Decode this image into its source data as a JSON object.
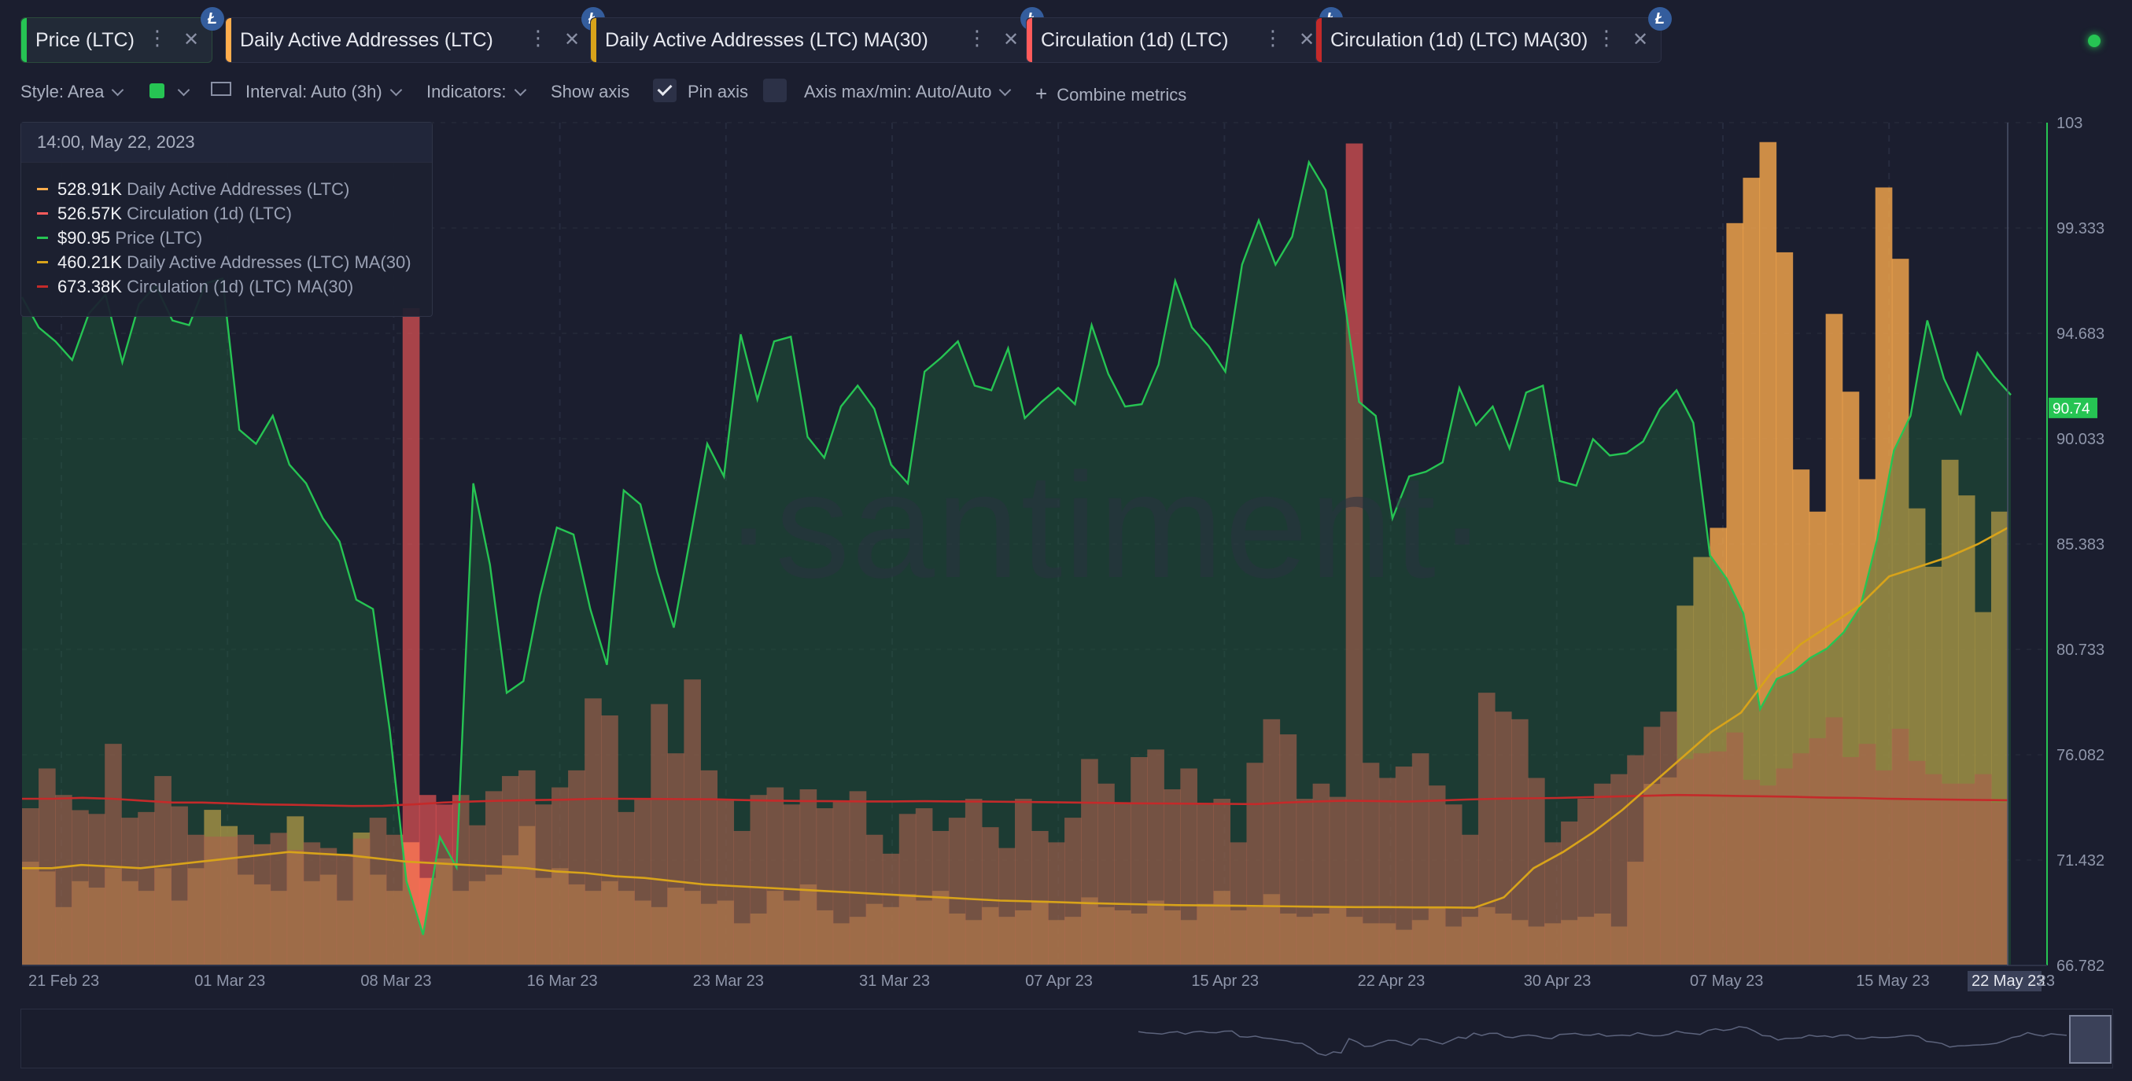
{
  "tabs": [
    {
      "label": "Price (LTC)",
      "color": "#26c453",
      "active": true
    },
    {
      "label": "Daily Active Addresses (LTC)",
      "color": "#ffad4d"
    },
    {
      "label": "Daily Active Addresses (LTC) MA(30)",
      "color": "#d8a31a"
    },
    {
      "label": "Circulation (1d) (LTC)",
      "color": "#ff5b5b"
    },
    {
      "label": "Circulation (1d) (LTC) MA(30)",
      "color": "#c42a2a"
    }
  ],
  "coin_symbol": "Ł",
  "settings": {
    "style": "Style: Area",
    "color_swatch": "#26c453",
    "interval": "Interval: Auto (3h)",
    "indicators": "Indicators:",
    "show_axis": "Show axis",
    "pin_axis": "Pin axis",
    "axis_maxmin": "Axis max/min: Auto/Auto",
    "combine": "Combine metrics"
  },
  "tooltip": {
    "date": "14:00, May 22, 2023",
    "rows": [
      {
        "value": "528.91K",
        "name": "Daily Active Addresses (LTC)",
        "color": "#ffad4d"
      },
      {
        "value": "526.57K",
        "name": "Circulation (1d) (LTC)",
        "color": "#ff5b5b"
      },
      {
        "value": "$90.95",
        "name": "Price (LTC)",
        "color": "#26c453"
      },
      {
        "value": "460.21K",
        "name": "Daily Active Addresses (LTC) MA(30)",
        "color": "#d8a31a"
      },
      {
        "value": "673.38K",
        "name": "Circulation (1d) (LTC) MA(30)",
        "color": "#c42a2a"
      }
    ]
  },
  "watermark": "·santiment·",
  "chart_data": {
    "type": "bar",
    "x_labels": [
      "21 Feb 23",
      "01 Mar 23",
      "08 Mar 23",
      "16 Mar 23",
      "23 Mar 23",
      "31 Mar 23",
      "07 Apr 23",
      "15 Apr 23",
      "22 Apr 23",
      "30 Apr 23",
      "07 May 23",
      "15 May 23",
      "22 May 23"
    ],
    "x_end_fragment": "23",
    "y_ticks": [
      "103",
      "99.333",
      "94.683",
      "90.033",
      "85.383",
      "80.733",
      "76.082",
      "71.432",
      "66.782"
    ],
    "price_axis_ylim": [
      66.782,
      103
    ],
    "last_price_label": "90.74",
    "hover_label": "22 May 23",
    "series": [
      {
        "name": "Price (LTC)",
        "type": "area",
        "color": "#26c453",
        "values": [
          95.5,
          94.2,
          93.6,
          92.8,
          94.8,
          95.6,
          92.7,
          95.2,
          96.0,
          94.5,
          94.3,
          96.1,
          96.3,
          89.8,
          89.2,
          90.4,
          88.3,
          87.5,
          86.0,
          85.0,
          82.5,
          82.1,
          76.9,
          70.4,
          68.1,
          72.3,
          71.0,
          87.5,
          84.0,
          78.5,
          79.0,
          82.7,
          85.6,
          85.3,
          82.1,
          79.7,
          87.2,
          86.6,
          83.7,
          81.3,
          85.2,
          89.2,
          87.8,
          93.9,
          91.1,
          93.6,
          93.8,
          89.5,
          88.6,
          90.8,
          91.7,
          90.7,
          88.3,
          87.5,
          92.3,
          92.9,
          93.6,
          91.7,
          91.5,
          93.3,
          90.3,
          91.0,
          91.6,
          90.9,
          94.3,
          92.2,
          90.8,
          90.9,
          92.6,
          96.2,
          94.2,
          93.4,
          92.3,
          96.9,
          98.8,
          96.9,
          98.1,
          101.3,
          100.1,
          96.0,
          91.0,
          90.4,
          86.0,
          87.8,
          88.0,
          88.4,
          91.6,
          90.0,
          90.8,
          89.0,
          91.4,
          91.7,
          87.6,
          87.4,
          89.4,
          88.7,
          88.8,
          89.3,
          90.7,
          91.5,
          90.1,
          84.4,
          83.4,
          81.9,
          77.8,
          79.1,
          79.4,
          80.0,
          80.4,
          81.1,
          82.2,
          85.1,
          88.9,
          90.4,
          94.5,
          92.0,
          90.5,
          93.1,
          92.1,
          91.3
        ],
        "note": "price path from 21 Feb 23 to 22 May 23 (approx.)"
      },
      {
        "name": "Daily Active Addresses (LTC)",
        "type": "bar",
        "color": "#ffad4d",
        "values": [
          320,
          290,
          180,
          260,
          240,
          300,
          260,
          230,
          300,
          200,
          300,
          480,
          430,
          280,
          250,
          230,
          460,
          260,
          280,
          200,
          410,
          280,
          230,
          380,
          270,
          330,
          230,
          260,
          280,
          340,
          430,
          270,
          300,
          250,
          230,
          260,
          230,
          200,
          180,
          240,
          230,
          190,
          200,
          130,
          160,
          230,
          200,
          250,
          170,
          130,
          150,
          190,
          180,
          220,
          200,
          230,
          160,
          140,
          180,
          150,
          170,
          200,
          140,
          150,
          210,
          180,
          170,
          160,
          200,
          170,
          140,
          190,
          230,
          170,
          180,
          220,
          160,
          150,
          160,
          180,
          150,
          130,
          130,
          110,
          140,
          180,
          120,
          150,
          180,
          160,
          140,
          120,
          130,
          140,
          150,
          160,
          120,
          320,
          560,
          580,
          1110,
          1260,
          1350,
          2290,
          2430,
          2540,
          2200,
          1530,
          1400,
          2010,
          1770,
          1500,
          2400,
          2180,
          1410,
          1230,
          1560,
          1450,
          1090,
          1400
        ],
        "unit": "K"
      },
      {
        "name": "Circulation (1d) (LTC)",
        "type": "bar",
        "color": "#ff5b5b",
        "values": [
          830,
          1040,
          900,
          820,
          800,
          1170,
          780,
          810,
          1000,
          840,
          690,
          680,
          680,
          690,
          640,
          700,
          610,
          650,
          620,
          590,
          670,
          780,
          690,
          3470,
          900,
          850,
          900,
          740,
          920,
          1000,
          1030,
          850,
          940,
          1030,
          1410,
          1320,
          810,
          880,
          1380,
          1120,
          1510,
          1030,
          880,
          710,
          900,
          940,
          850,
          930,
          830,
          870,
          920,
          690,
          590,
          800,
          830,
          710,
          780,
          880,
          730,
          620,
          880,
          710,
          650,
          780,
          1090,
          960,
          860,
          1100,
          1140,
          930,
          1040,
          850,
          880,
          650,
          1070,
          1300,
          1220,
          880,
          960,
          890,
          4340,
          1070,
          990,
          1050,
          1120,
          950,
          850,
          690,
          1440,
          1340,
          1300,
          990,
          650,
          760,
          880,
          960,
          1010,
          1110,
          1260,
          1340,
          1090,
          1120,
          1130,
          1230,
          980,
          950,
          1040,
          1120,
          1200,
          1310,
          1100,
          1170,
          1030,
          1250,
          1080,
          1010,
          960,
          960,
          1010,
          860
        ],
        "unit": "K"
      },
      {
        "name": "Daily Active Addresses (LTC) MA(30)",
        "type": "line",
        "color": "#d8a31a",
        "values": [
          300,
          300,
          310,
          305,
          300,
          310,
          320,
          330,
          340,
          350,
          345,
          340,
          330,
          320,
          315,
          310,
          305,
          300,
          290,
          285,
          275,
          270,
          260,
          250,
          245,
          240,
          235,
          230,
          225,
          220,
          215,
          210,
          205,
          200,
          198,
          195,
          192,
          190,
          188,
          186,
          185,
          184,
          183,
          182,
          181,
          180,
          180,
          179,
          179,
          178,
          210,
          300,
          350,
          410,
          480,
          560,
          640,
          720,
          780,
          900,
          990,
          1050,
          1110,
          1200,
          1230,
          1260,
          1300,
          1350
        ],
        "unit": "K"
      },
      {
        "name": "Circulation (1d) (LTC) MA(30)",
        "type": "line",
        "color": "#c42a2a",
        "values": [
          880,
          880,
          885,
          880,
          870,
          860,
          860,
          855,
          850,
          848,
          845,
          842,
          843,
          850,
          860,
          866,
          870,
          873,
          875,
          880,
          880,
          879,
          878,
          877,
          873,
          870,
          868,
          867,
          866,
          866,
          867,
          866,
          865,
          864,
          862,
          860,
          858,
          856,
          855,
          854,
          853,
          852,
          860,
          866,
          870,
          868,
          865,
          870,
          876,
          880,
          882,
          884,
          888,
          892,
          896,
          900,
          898,
          895,
          893,
          890,
          886,
          884,
          880,
          878,
          876,
          874,
          872
        ],
        "unit": "K"
      }
    ]
  }
}
